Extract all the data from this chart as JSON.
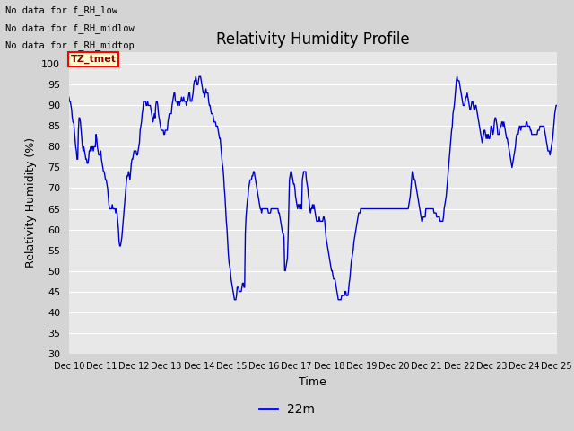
{
  "title": "Relativity Humidity Profile",
  "xlabel": "Time",
  "ylabel": "Relativity Humidity (%)",
  "legend_label": "22m",
  "ylim": [
    30,
    103
  ],
  "yticks": [
    30,
    35,
    40,
    45,
    50,
    55,
    60,
    65,
    70,
    75,
    80,
    85,
    90,
    95,
    100
  ],
  "line_color": "#0000cc",
  "bg_color": "#e8e8e8",
  "fig_bg_color": "#d4d4d4",
  "no_data_texts": [
    "No data for f_RH_low",
    "No data for f_RH_midlow",
    "No data for f_RH_midtop"
  ],
  "tz_label": "TZ_tmet",
  "x_tick_labels": [
    "Dec 10",
    "Dec 11",
    "Dec 12",
    "Dec 13",
    "Dec 14",
    "Dec 15",
    "Dec 16",
    "Dec 17",
    "Dec 18",
    "Dec 19",
    "Dec 20",
    "Dec 21",
    "Dec 22",
    "Dec 23",
    "Dec 24",
    "Dec 25"
  ],
  "y_values": [
    92,
    91,
    91,
    90,
    89,
    87,
    86,
    86,
    84,
    82,
    80,
    79,
    77,
    77,
    84,
    87,
    87,
    86,
    84,
    82,
    80,
    79,
    80,
    79,
    78,
    77,
    77,
    76,
    76,
    77,
    79,
    79,
    80,
    79,
    80,
    80,
    79,
    80,
    80,
    80,
    83,
    82,
    80,
    79,
    78,
    78,
    78,
    79,
    77,
    76,
    75,
    74,
    74,
    73,
    72,
    72,
    71,
    70,
    68,
    66,
    65,
    65,
    65,
    65,
    66,
    65,
    65,
    65,
    65,
    64,
    65,
    64,
    62,
    60,
    57,
    56,
    56,
    57,
    58,
    60,
    62,
    64,
    66,
    68,
    70,
    72,
    73,
    73,
    74,
    73,
    72,
    74,
    76,
    77,
    77,
    78,
    79,
    79,
    79,
    79,
    78,
    78,
    79,
    80,
    81,
    84,
    85,
    86,
    88,
    89,
    91,
    91,
    91,
    91,
    90,
    90,
    91,
    90,
    90,
    90,
    90,
    89,
    88,
    87,
    86,
    87,
    88,
    87,
    90,
    91,
    91,
    90,
    88,
    87,
    86,
    85,
    84,
    84,
    84,
    84,
    83,
    83,
    84,
    84,
    84,
    84,
    86,
    87,
    88,
    88,
    88,
    88,
    90,
    91,
    92,
    93,
    93,
    91,
    91,
    91,
    90,
    91,
    91,
    90,
    91,
    91,
    92,
    91,
    91,
    92,
    91,
    91,
    91,
    90,
    91,
    91,
    92,
    93,
    93,
    91,
    91,
    91,
    92,
    93,
    95,
    96,
    96,
    97,
    96,
    95,
    95,
    96,
    97,
    97,
    97,
    96,
    95,
    94,
    93,
    93,
    92,
    93,
    94,
    93,
    93,
    93,
    91,
    90,
    90,
    89,
    88,
    88,
    88,
    87,
    86,
    86,
    86,
    85,
    85,
    85,
    84,
    83,
    82,
    82,
    80,
    78,
    76,
    75,
    73,
    70,
    68,
    65,
    62,
    60,
    57,
    54,
    52,
    51,
    50,
    48,
    47,
    46,
    45,
    44,
    43,
    43,
    43,
    44,
    46,
    46,
    46,
    45,
    45,
    45,
    45,
    46,
    47,
    47,
    46,
    46,
    59,
    63,
    65,
    67,
    68,
    70,
    71,
    72,
    72,
    72,
    73,
    73,
    74,
    74,
    73,
    72,
    71,
    70,
    69,
    68,
    67,
    66,
    65,
    65,
    64,
    65,
    65,
    65,
    65,
    65,
    65,
    65,
    65,
    65,
    64,
    64,
    64,
    64,
    65,
    65,
    65,
    65,
    65,
    65,
    65,
    65,
    65,
    65,
    65,
    64,
    64,
    63,
    62,
    61,
    60,
    59,
    59,
    58,
    50,
    50,
    51,
    52,
    53,
    58,
    65,
    72,
    73,
    74,
    74,
    73,
    72,
    71,
    71,
    70,
    68,
    67,
    66,
    65,
    66,
    66,
    65,
    65,
    66,
    65,
    72,
    73,
    74,
    74,
    74,
    74,
    72,
    71,
    70,
    68,
    67,
    65,
    64,
    65,
    65,
    66,
    65,
    66,
    65,
    64,
    63,
    62,
    62,
    62,
    62,
    63,
    62,
    62,
    62,
    62,
    62,
    63,
    63,
    62,
    60,
    58,
    57,
    56,
    55,
    54,
    53,
    52,
    51,
    50,
    50,
    49,
    48,
    48,
    48,
    47,
    46,
    45,
    44,
    43,
    43,
    43,
    43,
    43,
    44,
    44,
    44,
    44,
    44,
    45,
    45,
    44,
    44,
    44,
    45,
    47,
    48,
    50,
    52,
    53,
    54,
    55,
    57,
    58,
    59,
    60,
    61,
    62,
    63,
    64,
    64,
    64,
    65,
    65,
    65,
    65,
    65,
    65,
    65,
    65,
    65,
    65,
    65,
    65,
    65,
    65,
    65,
    65,
    65,
    65,
    65,
    65,
    65,
    65,
    65,
    65,
    65,
    65,
    65,
    65,
    65,
    65,
    65,
    65,
    65,
    65,
    65,
    65,
    65,
    65,
    65,
    65,
    65,
    65,
    65,
    65,
    65,
    65,
    65,
    65,
    65,
    65,
    65,
    65,
    65,
    65,
    65,
    65,
    65,
    65,
    65,
    65,
    65,
    65,
    65,
    65,
    65,
    65,
    65,
    65,
    65,
    65,
    65,
    66,
    67,
    68,
    70,
    72,
    74,
    74,
    73,
    72,
    72,
    71,
    70,
    69,
    68,
    67,
    66,
    65,
    64,
    63,
    62,
    62,
    63,
    63,
    63,
    63,
    65,
    65,
    65,
    65,
    65,
    65,
    65,
    65,
    65,
    65,
    65,
    65,
    64,
    64,
    64,
    64,
    63,
    63,
    63,
    63,
    63,
    62,
    62,
    62,
    62,
    62,
    63,
    65,
    66,
    67,
    68,
    70,
    72,
    74,
    76,
    78,
    80,
    82,
    84,
    85,
    88,
    89,
    90,
    92,
    94,
    96,
    97,
    96,
    96,
    96,
    95,
    94,
    93,
    92,
    91,
    90,
    90,
    90,
    91,
    92,
    92,
    93,
    92,
    91,
    90,
    89,
    89,
    90,
    91,
    91,
    90,
    89,
    89,
    90,
    90,
    89,
    88,
    87,
    86,
    85,
    84,
    83,
    82,
    81,
    82,
    83,
    84,
    84,
    83,
    82,
    83,
    82,
    83,
    82,
    82,
    83,
    85,
    85,
    84,
    83,
    84,
    86,
    87,
    87,
    86,
    85,
    83,
    83,
    83,
    84,
    85,
    85,
    86,
    86,
    85,
    86,
    85,
    84,
    83,
    82,
    82,
    81,
    80,
    79,
    78,
    77,
    76,
    75,
    76,
    77,
    78,
    79,
    80,
    82,
    83,
    83,
    83,
    84,
    85,
    85,
    84,
    85,
    85,
    85,
    85,
    85,
    85,
    85,
    86,
    86,
    85,
    85,
    85,
    85,
    84,
    84,
    83,
    83,
    83,
    83,
    83,
    83,
    83,
    83,
    83,
    84,
    84,
    84,
    85,
    85,
    85,
    85,
    85,
    85,
    85,
    84,
    83,
    82,
    81,
    80,
    79,
    79,
    79,
    78,
    79,
    80,
    81,
    82,
    84,
    86,
    88,
    89,
    90,
    90
  ]
}
